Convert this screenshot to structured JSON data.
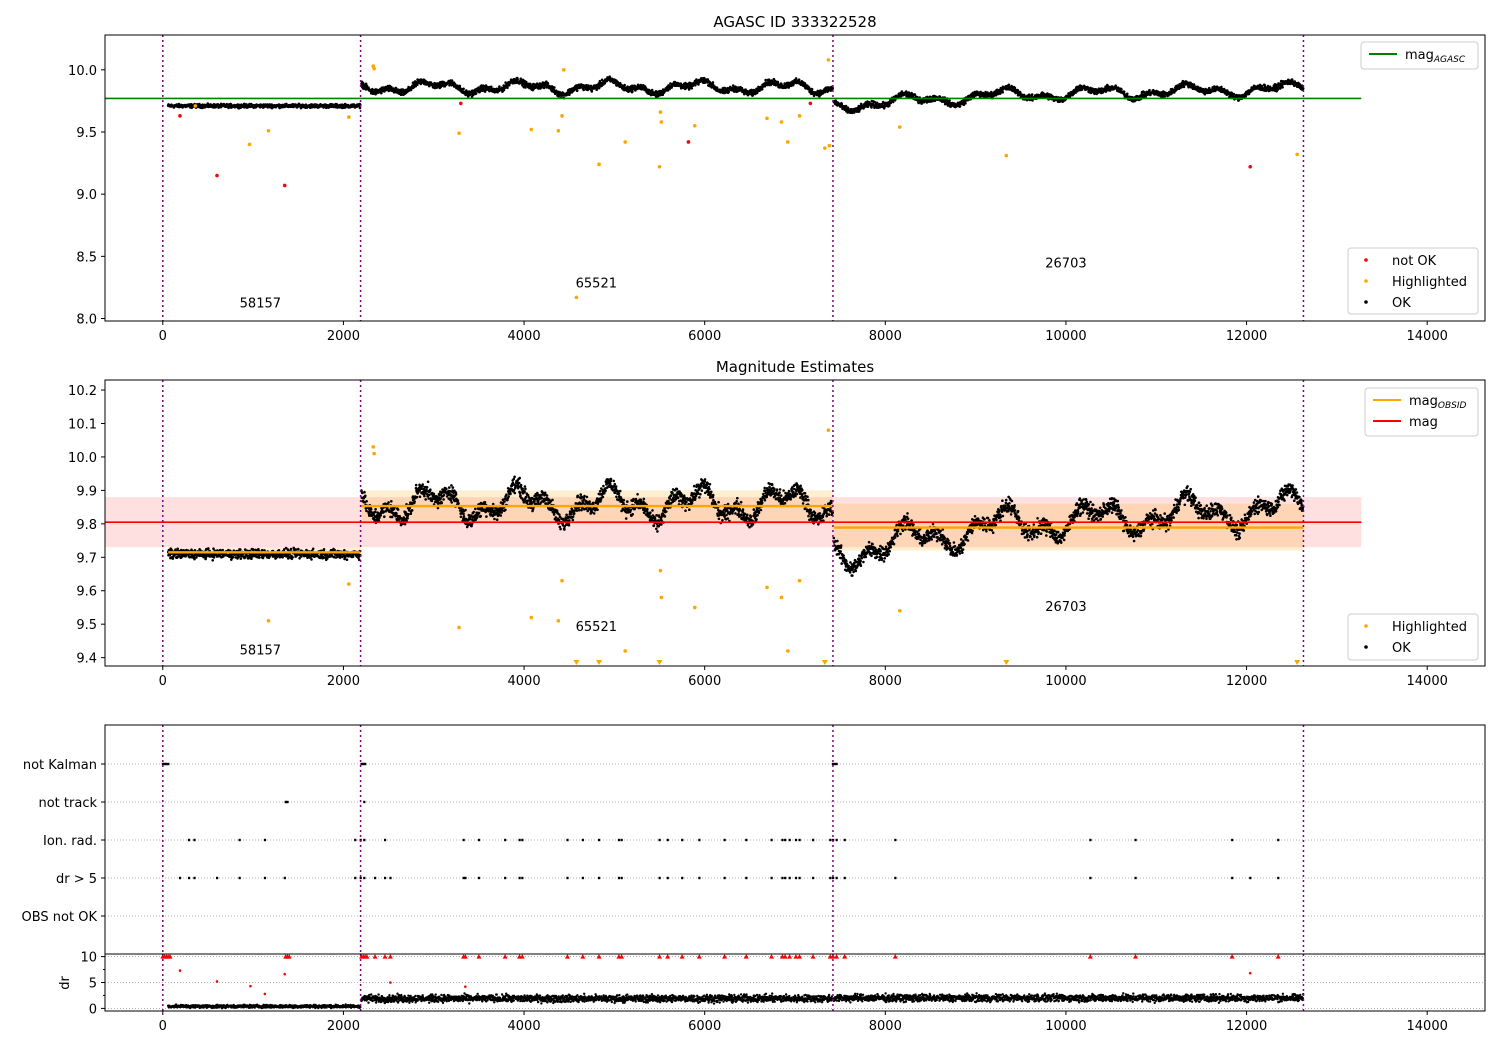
{
  "chart_data": [
    {
      "type": "scatter",
      "title": "AGASC ID 333322528",
      "xlim": [
        -640,
        14640
      ],
      "ylim": [
        7.98,
        10.28
      ],
      "yticks": [
        8.0,
        8.5,
        9.0,
        9.5,
        10.0
      ],
      "xticks": [
        0,
        2000,
        4000,
        6000,
        8000,
        10000,
        12000,
        14000
      ],
      "vlines": [
        0,
        2190,
        7420,
        12630
      ],
      "mag_agasc": 9.77,
      "mag_agasc_xrange": [
        -640,
        13270
      ],
      "obsid_labels": [
        {
          "x": 1080,
          "y": 8.09,
          "text": "58157"
        },
        {
          "x": 4800,
          "y": 8.25,
          "text": "65521"
        },
        {
          "x": 10000,
          "y": 8.41,
          "text": "26703"
        }
      ],
      "legends": [
        {
          "position": "upper-right",
          "entries": [
            {
              "label": "mag",
              "sub": "AGASC",
              "color": "#008000",
              "kind": "line"
            }
          ]
        },
        {
          "position": "lower-right",
          "entries": [
            {
              "label": "not OK",
              "color": "#ff0000",
              "kind": "marker"
            },
            {
              "label": "Highlighted",
              "color": "#ffa500",
              "kind": "marker"
            },
            {
              "label": "OK",
              "color": "#000000",
              "kind": "marker"
            }
          ]
        }
      ],
      "segments": [
        {
          "x0": 60,
          "x1": 2190,
          "base": 9.71,
          "noise": 0.012,
          "amp": 0.0
        },
        {
          "x0": 2200,
          "x1": 7420,
          "base": 9.86,
          "noise": 0.02,
          "amp": 0.06
        },
        {
          "x0": 7430,
          "x1": 12630,
          "base": 9.8,
          "noise": 0.02,
          "amp": 0.06
        }
      ],
      "highlighted_points": [
        [
          360,
          9.71
        ],
        [
          960,
          9.4
        ],
        [
          1170,
          9.51
        ],
        [
          2060,
          9.62
        ],
        [
          2330,
          10.03
        ],
        [
          2340,
          10.01
        ],
        [
          3280,
          9.49
        ],
        [
          4080,
          9.52
        ],
        [
          4380,
          9.51
        ],
        [
          4420,
          9.63
        ],
        [
          4440,
          10.0
        ],
        [
          4580,
          8.17
        ],
        [
          4830,
          9.24
        ],
        [
          5120,
          9.42
        ],
        [
          5500,
          9.22
        ],
        [
          5510,
          9.66
        ],
        [
          5520,
          9.58
        ],
        [
          5890,
          9.55
        ],
        [
          6690,
          9.61
        ],
        [
          6850,
          9.58
        ],
        [
          6920,
          9.42
        ],
        [
          7050,
          9.63
        ],
        [
          7330,
          9.37
        ],
        [
          7370,
          10.08
        ],
        [
          7380,
          9.39
        ],
        [
          8160,
          9.54
        ],
        [
          9340,
          9.31
        ],
        [
          12560,
          9.32
        ]
      ],
      "notok_points": [
        [
          190,
          9.63
        ],
        [
          600,
          9.15
        ],
        [
          1350,
          9.07
        ],
        [
          3300,
          9.73
        ],
        [
          5820,
          9.42
        ],
        [
          7170,
          9.73
        ],
        [
          12040,
          9.22
        ]
      ]
    },
    {
      "type": "scatter",
      "title": "Magnitude Estimates",
      "xlim": [
        -640,
        14640
      ],
      "ylim": [
        9.375,
        10.23
      ],
      "yticks": [
        9.4,
        9.5,
        9.6,
        9.7,
        9.8,
        9.9,
        10.0,
        10.1,
        10.2
      ],
      "xticks": [
        0,
        2000,
        4000,
        6000,
        8000,
        10000,
        12000,
        14000
      ],
      "vlines": [
        0,
        2190,
        7420,
        12630
      ],
      "mag_mean": 9.805,
      "mag_band": [
        9.73,
        9.88
      ],
      "mag_xrange": [
        -640,
        13270
      ],
      "obsid_mags": [
        {
          "x0": 60,
          "x1": 2190,
          "mag": 9.715,
          "band": [
            9.7,
            9.73
          ]
        },
        {
          "x0": 2200,
          "x1": 7420,
          "mag": 9.853,
          "band": [
            9.8,
            9.9
          ]
        },
        {
          "x0": 7430,
          "x1": 12630,
          "mag": 9.789,
          "band": [
            9.72,
            9.86
          ]
        }
      ],
      "obsid_labels": [
        {
          "x": 1080,
          "y": 9.41,
          "text": "58157"
        },
        {
          "x": 4800,
          "y": 9.48,
          "text": "65521"
        },
        {
          "x": 10000,
          "y": 9.54,
          "text": "26703"
        }
      ],
      "legends": [
        {
          "position": "upper-right",
          "entries": [
            {
              "label": "mag",
              "sub": "OBSID",
              "color": "#ffa500",
              "kind": "line"
            },
            {
              "label": "mag",
              "sub": "",
              "color": "#ff0000",
              "kind": "line"
            }
          ]
        },
        {
          "position": "lower-right",
          "entries": [
            {
              "label": "Highlighted",
              "color": "#ffa500",
              "kind": "marker"
            },
            {
              "label": "OK",
              "color": "#000000",
              "kind": "marker"
            }
          ]
        }
      ],
      "segments": [
        {
          "x0": 60,
          "x1": 2190,
          "base": 9.71,
          "noise": 0.012,
          "amp": 0.0
        },
        {
          "x0": 2200,
          "x1": 7420,
          "base": 9.86,
          "noise": 0.02,
          "amp": 0.06
        },
        {
          "x0": 7430,
          "x1": 12630,
          "base": 9.8,
          "noise": 0.02,
          "amp": 0.06
        }
      ],
      "highlighted_points": [
        [
          1170,
          9.51
        ],
        [
          2060,
          9.62
        ],
        [
          2330,
          10.03
        ],
        [
          2340,
          10.01
        ],
        [
          3280,
          9.49
        ],
        [
          4080,
          9.52
        ],
        [
          4380,
          9.51
        ],
        [
          4420,
          9.63
        ],
        [
          5120,
          9.42
        ],
        [
          5510,
          9.66
        ],
        [
          5520,
          9.58
        ],
        [
          5890,
          9.55
        ],
        [
          6690,
          9.61
        ],
        [
          6850,
          9.58
        ],
        [
          6920,
          9.42
        ],
        [
          7050,
          9.63
        ],
        [
          7370,
          10.08
        ],
        [
          8160,
          9.54
        ]
      ],
      "below_range_x": [
        4580,
        4830,
        5500,
        7330,
        9340,
        12560
      ]
    },
    {
      "type": "scatter",
      "title": "",
      "xlim": [
        -640,
        14640
      ],
      "categories": [
        "not Kalman",
        "not track",
        "Ion. rad.",
        "dr > 5",
        "OBS not OK"
      ],
      "vlines": [
        0,
        2190,
        7420,
        12630
      ],
      "flag_x": {
        "not Kalman": [
          0,
          20,
          40,
          60,
          2200,
          2220,
          2240,
          7420,
          7440,
          7460
        ],
        "not track": [
          1360,
          1380,
          2230
        ],
        "Ion. rad.": [
          290,
          350,
          850,
          1130,
          2130,
          2190,
          2230,
          2460,
          3330,
          3500,
          3790,
          3950,
          3980,
          4480,
          4650,
          4830,
          5050,
          5080,
          5500,
          5590,
          5750,
          5940,
          6220,
          6460,
          6740,
          6860,
          6890,
          6940,
          7010,
          7050,
          7200,
          7390,
          7420,
          7460,
          7550,
          8110,
          10270,
          10770,
          11840,
          12350
        ],
        "dr > 5": [
          190,
          290,
          350,
          600,
          850,
          1130,
          1350,
          2130,
          2190,
          2230,
          2350,
          2460,
          2520,
          3330,
          3350,
          3500,
          3790,
          3950,
          3980,
          4480,
          4650,
          4830,
          5050,
          5080,
          5500,
          5590,
          5750,
          5940,
          6220,
          6460,
          6740,
          6860,
          6890,
          6940,
          7010,
          7050,
          7200,
          7390,
          7420,
          7460,
          7550,
          8110,
          10270,
          10770,
          11840,
          12040,
          12350
        ],
        "OBS not OK": []
      }
    },
    {
      "type": "scatter",
      "title": "",
      "ylabel": "dr",
      "xlim": [
        -640,
        14640
      ],
      "ylim": [
        -0.5,
        10.5
      ],
      "yticks": [
        0,
        5,
        10
      ],
      "xticks": [
        0,
        2000,
        4000,
        6000,
        8000,
        10000,
        12000,
        14000
      ],
      "vlines": [
        0,
        2190,
        7420,
        12630
      ],
      "capped_x": [
        0,
        20,
        40,
        60,
        80,
        1360,
        1380,
        1400,
        2200,
        2220,
        2240,
        2260,
        2350,
        2460,
        2520,
        3330,
        3350,
        3500,
        3790,
        3950,
        3980,
        4480,
        4650,
        4830,
        5050,
        5080,
        5500,
        5590,
        5750,
        5940,
        6220,
        6460,
        6740,
        6860,
        6890,
        6940,
        7010,
        7050,
        7200,
        7390,
        7420,
        7460,
        7550,
        8110,
        10270,
        10770,
        11840,
        12350
      ],
      "red_points": [
        [
          190,
          7.3
        ],
        [
          600,
          5.2
        ],
        [
          970,
          4.3
        ],
        [
          1130,
          2.8
        ],
        [
          1350,
          6.6
        ],
        [
          2520,
          5.0
        ],
        [
          3350,
          4.2
        ],
        [
          12040,
          6.8
        ]
      ]
    }
  ]
}
